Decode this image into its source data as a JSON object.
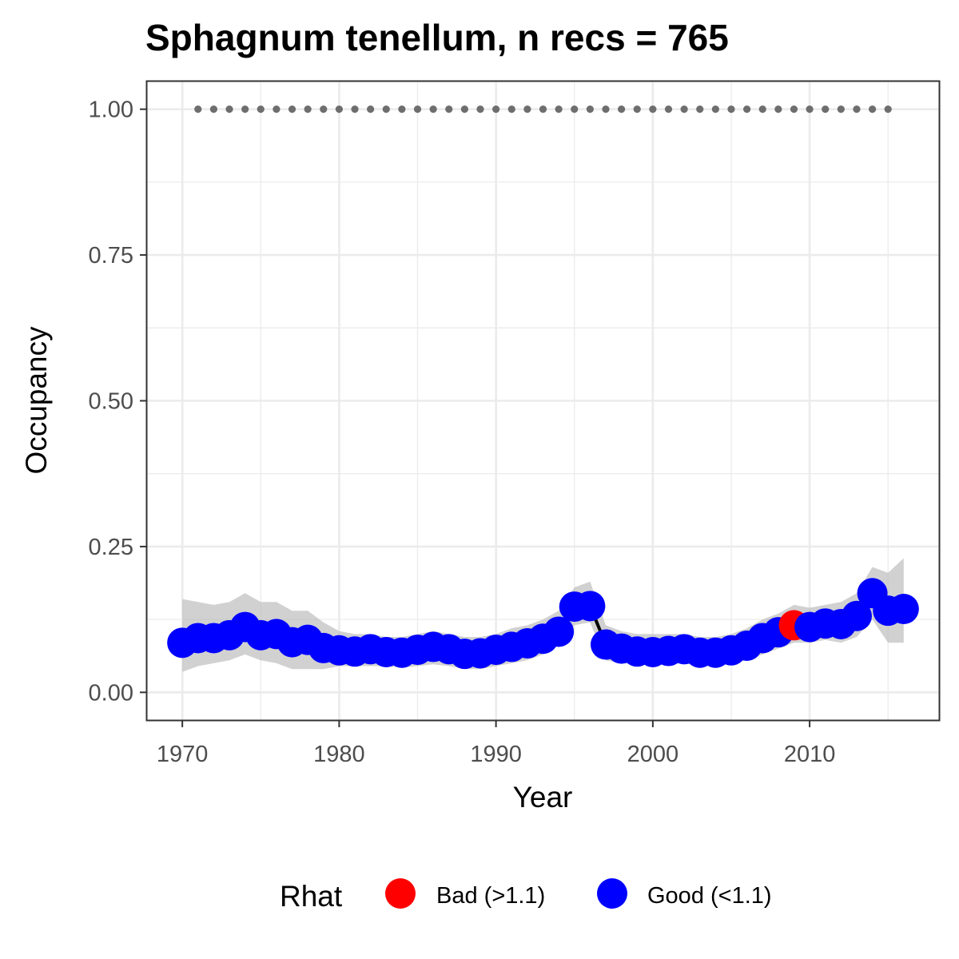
{
  "chart_data": {
    "type": "line",
    "title": "Sphagnum tenellum, n recs = 765",
    "xlabel": "Year",
    "ylabel": "Occupancy",
    "xlim": [
      1967.8,
      1917.8
    ],
    "xlim_note": "",
    "x_ticks": [
      1970,
      1980,
      1990,
      2000,
      2010
    ],
    "y_ticks": [
      0.0,
      0.25,
      0.5,
      0.75,
      1.0
    ],
    "y_tick_labels": [
      "0.00",
      "0.25",
      "0.50",
      "0.75",
      "1.00"
    ],
    "grid": true,
    "legend": {
      "title": "Rhat",
      "placement": "bottom",
      "entries": [
        {
          "label": "Bad (>1.1)",
          "color": "#ff0000"
        },
        {
          "label": "Good (<1.1)",
          "color": "#0000ff"
        }
      ]
    },
    "colors": {
      "bad": "#ff0000",
      "good": "#0000ff",
      "line": "#000000",
      "ribbon": "#bebebe",
      "reference": "#6e6e6e",
      "grid": "#ebebeb",
      "panel_border": "#333333"
    },
    "reference_years": [
      1971,
      1972,
      1973,
      1974,
      1975,
      1976,
      1977,
      1978,
      1979,
      1980,
      1981,
      1982,
      1983,
      1984,
      1985,
      1986,
      1987,
      1988,
      1989,
      1990,
      1991,
      1992,
      1993,
      1994,
      1995,
      1996,
      1997,
      1998,
      1999,
      2000,
      2001,
      2002,
      2003,
      2004,
      2005,
      2006,
      2007,
      2008,
      2009,
      2010,
      2011,
      2012,
      2013,
      2014,
      2015
    ],
    "reference_value": 1.0,
    "series": [
      {
        "x": [
          1970,
          1971,
          1972,
          1973,
          1974,
          1975,
          1976,
          1977,
          1978,
          1979,
          1980,
          1981,
          1982,
          1983,
          1984,
          1985,
          1986,
          1987,
          1988,
          1989,
          1990,
          1991,
          1992,
          1993,
          1994,
          1995,
          1996,
          1997,
          1998,
          1999,
          2000,
          2001,
          2002,
          2003,
          2004,
          2005,
          2006,
          2007,
          2008,
          2009,
          2010,
          2011,
          2012,
          2013,
          2014,
          2015,
          2016
        ],
        "y": [
          0.085,
          0.093,
          0.093,
          0.098,
          0.112,
          0.098,
          0.1,
          0.086,
          0.09,
          0.076,
          0.072,
          0.07,
          0.074,
          0.069,
          0.068,
          0.073,
          0.078,
          0.074,
          0.066,
          0.067,
          0.073,
          0.078,
          0.084,
          0.092,
          0.104,
          0.147,
          0.148,
          0.082,
          0.075,
          0.07,
          0.069,
          0.071,
          0.074,
          0.068,
          0.068,
          0.072,
          0.08,
          0.093,
          0.103,
          0.115,
          0.112,
          0.118,
          0.117,
          0.131,
          0.17,
          0.14,
          0.143
        ],
        "lower": [
          0.035,
          0.045,
          0.05,
          0.055,
          0.065,
          0.055,
          0.05,
          0.04,
          0.04,
          0.04,
          0.045,
          0.045,
          0.045,
          0.045,
          0.042,
          0.045,
          0.048,
          0.045,
          0.04,
          0.04,
          0.045,
          0.05,
          0.055,
          0.065,
          0.08,
          0.115,
          0.12,
          0.055,
          0.05,
          0.048,
          0.048,
          0.048,
          0.05,
          0.045,
          0.045,
          0.05,
          0.055,
          0.065,
          0.075,
          0.085,
          0.085,
          0.09,
          0.085,
          0.095,
          0.125,
          0.085,
          0.085
        ],
        "upper": [
          0.16,
          0.155,
          0.15,
          0.155,
          0.17,
          0.155,
          0.155,
          0.14,
          0.14,
          0.12,
          0.105,
          0.1,
          0.1,
          0.095,
          0.095,
          0.1,
          0.105,
          0.1,
          0.095,
          0.095,
          0.1,
          0.11,
          0.115,
          0.125,
          0.14,
          0.18,
          0.19,
          0.115,
          0.105,
          0.1,
          0.1,
          0.1,
          0.1,
          0.095,
          0.095,
          0.1,
          0.11,
          0.125,
          0.135,
          0.15,
          0.145,
          0.15,
          0.155,
          0.17,
          0.215,
          0.205,
          0.23
        ],
        "rhat": [
          "good",
          "good",
          "good",
          "good",
          "good",
          "good",
          "good",
          "good",
          "good",
          "good",
          "good",
          "good",
          "good",
          "good",
          "good",
          "good",
          "good",
          "good",
          "good",
          "good",
          "good",
          "good",
          "good",
          "good",
          "good",
          "good",
          "good",
          "good",
          "good",
          "good",
          "good",
          "good",
          "good",
          "good",
          "good",
          "good",
          "good",
          "good",
          "good",
          "bad",
          "good",
          "good",
          "good",
          "good",
          "good",
          "good",
          "good"
        ]
      }
    ]
  }
}
